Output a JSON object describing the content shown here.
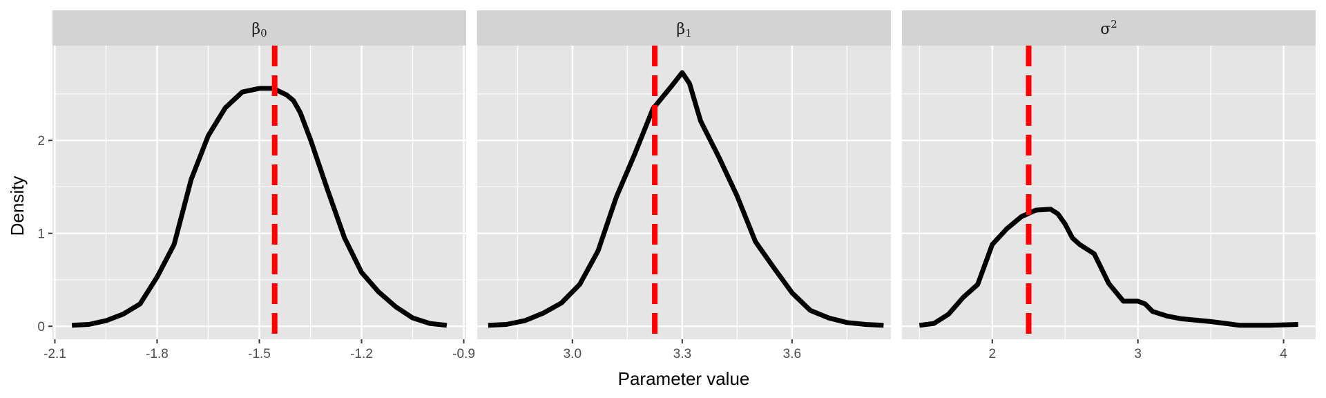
{
  "chart_data": {
    "type": "line",
    "ylabel": "Density",
    "xlabel": "Parameter value",
    "y_ticks": [
      0,
      1,
      2
    ],
    "ylim": [
      -0.14,
      3.02
    ],
    "colors": {
      "density": "#000000",
      "reference": "#ff0000",
      "panel_bg": "#e5e5e5",
      "strip_bg": "#d3d3d3",
      "grid": "#ffffff"
    },
    "panels": [
      {
        "strip": {
          "symbol": "β",
          "sub": "0",
          "sup": ""
        },
        "xlim": [
          -2.107,
          -0.893
        ],
        "x_ticks": [
          -2.1,
          -1.8,
          -1.5,
          -1.2,
          -0.9
        ],
        "x_tick_labels": [
          "-2.1",
          "-1.8",
          "-1.5",
          "-1.2",
          "-0.9"
        ],
        "x_minor": [
          -1.95,
          -1.65,
          -1.35,
          -1.05
        ],
        "reference_x": -1.455,
        "density": {
          "x": [
            -2.05,
            -2.0,
            -1.95,
            -1.9,
            -1.85,
            -1.8,
            -1.75,
            -1.7,
            -1.65,
            -1.6,
            -1.55,
            -1.5,
            -1.46,
            -1.42,
            -1.4,
            -1.38,
            -1.35,
            -1.3,
            -1.25,
            -1.2,
            -1.15,
            -1.1,
            -1.05,
            -1.0,
            -0.95
          ],
          "y": [
            0.01,
            0.02,
            0.06,
            0.13,
            0.24,
            0.53,
            0.88,
            1.58,
            2.05,
            2.35,
            2.52,
            2.56,
            2.56,
            2.49,
            2.43,
            2.3,
            2.01,
            1.47,
            0.95,
            0.58,
            0.37,
            0.21,
            0.09,
            0.03,
            0.01
          ]
        }
      },
      {
        "strip": {
          "symbol": "β",
          "sub": "1",
          "sup": ""
        },
        "xlim": [
          2.74,
          3.87
        ],
        "x_ticks": [
          3.0,
          3.3,
          3.6
        ],
        "x_tick_labels": [
          "3.0",
          "3.3",
          "3.6"
        ],
        "x_minor": [
          2.85,
          3.15,
          3.45,
          3.75
        ],
        "reference_x": 3.225,
        "density": {
          "x": [
            2.77,
            2.82,
            2.87,
            2.92,
            2.97,
            3.02,
            3.07,
            3.12,
            3.17,
            3.22,
            3.27,
            3.3,
            3.32,
            3.35,
            3.4,
            3.45,
            3.5,
            3.55,
            3.6,
            3.65,
            3.7,
            3.75,
            3.8,
            3.85
          ],
          "y": [
            0.01,
            0.02,
            0.06,
            0.14,
            0.25,
            0.45,
            0.81,
            1.39,
            1.85,
            2.34,
            2.58,
            2.73,
            2.61,
            2.21,
            1.82,
            1.4,
            0.91,
            0.63,
            0.36,
            0.17,
            0.09,
            0.04,
            0.02,
            0.01
          ]
        }
      },
      {
        "strip": {
          "symbol": "σ",
          "sub": "",
          "sup": "2"
        },
        "xlim": [
          1.38,
          4.22
        ],
        "x_ticks": [
          2,
          3,
          4
        ],
        "x_tick_labels": [
          "2",
          "3",
          "4"
        ],
        "x_minor": [
          1.5,
          2.5,
          3.5
        ],
        "reference_x": 2.25,
        "density": {
          "x": [
            1.5,
            1.6,
            1.7,
            1.8,
            1.9,
            2.0,
            2.1,
            2.2,
            2.3,
            2.4,
            2.45,
            2.5,
            2.55,
            2.6,
            2.7,
            2.8,
            2.9,
            3.0,
            3.05,
            3.1,
            3.2,
            3.3,
            3.5,
            3.7,
            3.9,
            4.1
          ],
          "y": [
            0.01,
            0.03,
            0.13,
            0.31,
            0.45,
            0.88,
            1.05,
            1.18,
            1.25,
            1.26,
            1.21,
            1.1,
            0.95,
            0.88,
            0.78,
            0.46,
            0.27,
            0.27,
            0.24,
            0.16,
            0.11,
            0.08,
            0.05,
            0.01,
            0.01,
            0.02
          ]
        }
      }
    ]
  }
}
